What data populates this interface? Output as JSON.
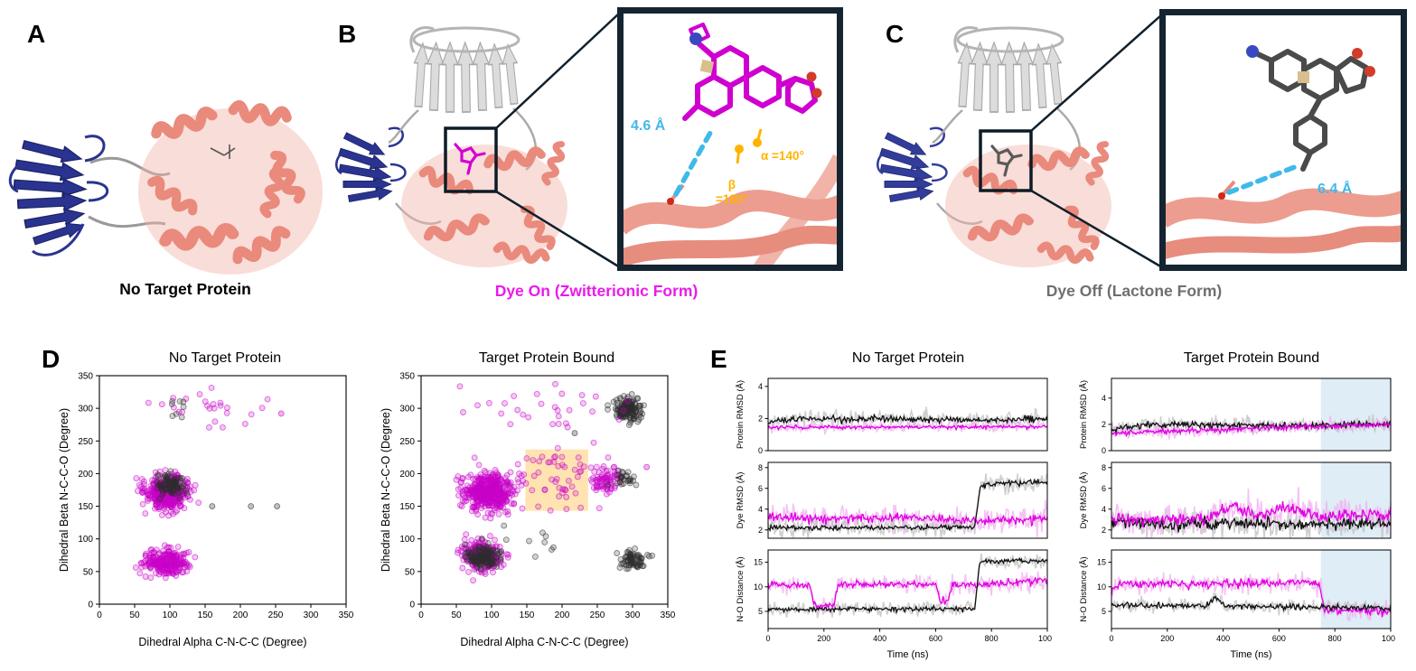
{
  "panels": {
    "a": {
      "label": "A",
      "caption": "No Target Protein"
    },
    "b": {
      "label": "B",
      "caption": "Dye On (Zwitterionic Form)",
      "inset": {
        "distance_label": "4.6 Å",
        "alpha_label": "α =140°",
        "beta_label": "β\n=180°"
      }
    },
    "c": {
      "label": "C",
      "caption": "Dye Off (Lactone Form)",
      "inset": {
        "distance_label": "6.4 Å"
      }
    },
    "d": {
      "label": "D"
    },
    "e": {
      "label": "E"
    }
  },
  "colors": {
    "dye_on_magenta": "#ea1bea",
    "dye_off_gray": "#6f6f6f",
    "distance_cyan": "#41b9e9",
    "angle_orange": "#ffb300",
    "scatter_magenta": "#c800c8",
    "scatter_black": "#2e2e2e",
    "trace_magenta": "#e100e1",
    "trace_black": "#111111",
    "highlight_orange": "#ffd27f",
    "highlight_blue": "#d9eaf5",
    "protein_salmon": "#ee9486",
    "protein_navy": "#2a3490",
    "protein_gray": "#c9c9c9"
  },
  "chart_data": [
    {
      "id": "scatter_no_target",
      "type": "scatter",
      "title": "No Target Protein",
      "xlabel": "Dihedral Alpha C-N-C-C (Degree)",
      "ylabel": "Dihedral Beta N-C-C-O (Degree)",
      "xlim": [
        0,
        350
      ],
      "ylim": [
        0,
        350
      ],
      "xticks": [
        0,
        50,
        100,
        150,
        200,
        250,
        300,
        350
      ],
      "yticks": [
        0,
        50,
        100,
        150,
        200,
        250,
        300,
        350
      ],
      "clusters": [
        {
          "color": "magenta",
          "cx": 95,
          "cy": 170,
          "sx": 16,
          "sy": 13,
          "n": 420
        },
        {
          "color": "black",
          "cx": 103,
          "cy": 183,
          "sx": 10,
          "sy": 8,
          "n": 90
        },
        {
          "color": "magenta",
          "cx": 95,
          "cy": 65,
          "sx": 15,
          "sy": 10,
          "n": 230
        },
        {
          "color": "magenta",
          "cx": 150,
          "cy": 300,
          "sx": 55,
          "sy": 17,
          "n": 26
        },
        {
          "color": "black",
          "cx": 112,
          "cy": 297,
          "sx": 10,
          "sy": 9,
          "n": 8
        }
      ],
      "points": [
        {
          "color": "black",
          "x": 215,
          "y": 150
        },
        {
          "color": "black",
          "x": 252,
          "y": 150
        },
        {
          "color": "black",
          "x": 160,
          "y": 150
        },
        {
          "color": "magenta",
          "x": 258,
          "y": 292
        }
      ]
    },
    {
      "id": "scatter_bound",
      "type": "scatter",
      "title": "Target Protein Bound",
      "xlabel": "Dihedral Alpha C-N-C-C (Degree)",
      "ylabel": "Dihedral Beta N-C-C-O (Degree)",
      "xlim": [
        0,
        350
      ],
      "ylim": [
        0,
        350
      ],
      "xticks": [
        0,
        50,
        100,
        150,
        200,
        250,
        300,
        350
      ],
      "yticks": [
        0,
        50,
        100,
        150,
        200,
        250,
        300,
        350
      ],
      "highlight_rect": {
        "x0": 148,
        "x1": 237,
        "y0": 143,
        "y1": 237,
        "color": "#ffd27f",
        "opacity": 0.6
      },
      "clusters": [
        {
          "color": "magenta",
          "cx": 95,
          "cy": 172,
          "sx": 17,
          "sy": 14,
          "n": 420
        },
        {
          "color": "magenta",
          "cx": 88,
          "cy": 75,
          "sx": 14,
          "sy": 11,
          "n": 240
        },
        {
          "color": "black",
          "cx": 88,
          "cy": 72,
          "sx": 11,
          "sy": 9,
          "n": 130
        },
        {
          "color": "black",
          "cx": 293,
          "cy": 299,
          "sx": 9,
          "sy": 8,
          "n": 150
        },
        {
          "color": "black",
          "cx": 300,
          "cy": 68,
          "sx": 10,
          "sy": 8,
          "n": 70
        },
        {
          "color": "magenta",
          "cx": 263,
          "cy": 190,
          "sx": 12,
          "sy": 10,
          "n": 70
        },
        {
          "color": "black",
          "cx": 290,
          "cy": 193,
          "sx": 8,
          "sy": 7,
          "n": 25
        },
        {
          "color": "magenta",
          "cx": 190,
          "cy": 195,
          "sx": 30,
          "sy": 25,
          "n": 55
        },
        {
          "color": "magenta",
          "cx": 160,
          "cy": 300,
          "sx": 60,
          "sy": 17,
          "n": 30
        },
        {
          "color": "black",
          "cx": 150,
          "cy": 95,
          "sx": 25,
          "sy": 12,
          "n": 10
        }
      ],
      "points": [
        {
          "color": "black",
          "x": 218,
          "y": 262
        },
        {
          "color": "magenta",
          "x": 320,
          "y": 210
        }
      ]
    },
    {
      "id": "protein_rmsd_no_target",
      "type": "line",
      "title": "No Target Protein",
      "ylabel": "Protein RMSD (Å)",
      "xlim": [
        0,
        1000
      ],
      "ylim": [
        0,
        4.5
      ],
      "yticks": [
        0,
        2,
        4
      ],
      "xticks": [],
      "series": [
        {
          "name": "dye-off",
          "color": "#111111",
          "band": "#bfbfbf",
          "noise": 0.1,
          "band_noise": 0.26,
          "points": [
            [
              0,
              1.75
            ],
            [
              80,
              1.95
            ],
            [
              400,
              2.0
            ],
            [
              700,
              1.9
            ],
            [
              1000,
              1.95
            ]
          ]
        },
        {
          "name": "dye-on",
          "color": "#e100e1",
          "band": "#f2aef2",
          "noise": 0.06,
          "band_noise": 0.16,
          "points": [
            [
              0,
              1.45
            ],
            [
              1000,
              1.5
            ]
          ]
        }
      ]
    },
    {
      "id": "dye_rmsd_no_target",
      "type": "line",
      "ylabel": "Dye RMSD (Å)",
      "xlim": [
        0,
        1000
      ],
      "ylim": [
        1.2,
        8.5
      ],
      "yticks": [
        2,
        4,
        6,
        8
      ],
      "xticks": [],
      "series": [
        {
          "name": "dye-on",
          "color": "#e100e1",
          "band": "#f2aef2",
          "noise": 0.22,
          "band_noise": 0.6,
          "points": [
            [
              0,
              3.3
            ],
            [
              200,
              3.1
            ],
            [
              500,
              3.2
            ],
            [
              760,
              2.9
            ],
            [
              1000,
              3.1
            ]
          ]
        },
        {
          "name": "dye-off",
          "color": "#111111",
          "band": "#bfbfbf",
          "noise": 0.12,
          "band_noise": 0.4,
          "points": [
            [
              0,
              2.2
            ],
            [
              740,
              2.25
            ],
            [
              760,
              6.2
            ],
            [
              820,
              6.5
            ],
            [
              1000,
              6.6
            ]
          ]
        }
      ]
    },
    {
      "id": "no_dist_no_target",
      "type": "line",
      "ylabel": "N-O Distance (Å)",
      "xlabel": "Time (ns)",
      "xlim": [
        0,
        1000
      ],
      "ylim": [
        1.5,
        17.5
      ],
      "yticks": [
        5,
        10,
        15
      ],
      "xticks": [
        0,
        200,
        400,
        600,
        800,
        1000
      ],
      "series": [
        {
          "name": "dye-on",
          "color": "#e100e1",
          "band": "#f2aef2",
          "noise": 0.35,
          "band_noise": 0.9,
          "points": [
            [
              0,
              10.6
            ],
            [
              150,
              10.4
            ],
            [
              165,
              6.1
            ],
            [
              235,
              6.2
            ],
            [
              250,
              10.5
            ],
            [
              600,
              10.6
            ],
            [
              615,
              7.2
            ],
            [
              645,
              7.0
            ],
            [
              660,
              10.5
            ],
            [
              735,
              10.4
            ],
            [
              1000,
              11.2
            ]
          ]
        },
        {
          "name": "dye-off",
          "color": "#111111",
          "band": "#bfbfbf",
          "noise": 0.25,
          "band_noise": 0.7,
          "points": [
            [
              0,
              5.4
            ],
            [
              740,
              5.5
            ],
            [
              758,
              15.1
            ],
            [
              1000,
              15.3
            ]
          ]
        }
      ]
    },
    {
      "id": "protein_rmsd_bound",
      "type": "line",
      "title": "Target Protein Bound",
      "ylabel": "Protein RMSD (Å)",
      "xlim": [
        0,
        1000
      ],
      "ylim": [
        0,
        5.5
      ],
      "yticks": [
        0,
        2,
        4
      ],
      "xticks": [],
      "highlight": [
        750,
        1000
      ],
      "series": [
        {
          "name": "dye-off",
          "color": "#111111",
          "band": "#bfbfbf",
          "noise": 0.12,
          "band_noise": 0.3,
          "points": [
            [
              0,
              1.6
            ],
            [
              120,
              2.0
            ],
            [
              600,
              1.9
            ],
            [
              1000,
              2.0
            ]
          ]
        },
        {
          "name": "dye-on",
          "color": "#e100e1",
          "band": "#f2aef2",
          "noise": 0.1,
          "band_noise": 0.25,
          "points": [
            [
              0,
              1.3
            ],
            [
              400,
              1.6
            ],
            [
              800,
              1.9
            ],
            [
              1000,
              2.0
            ]
          ]
        }
      ]
    },
    {
      "id": "dye_rmsd_bound",
      "type": "line",
      "ylabel": "Dye RMSD (Å)",
      "xlim": [
        0,
        1000
      ],
      "ylim": [
        1.2,
        8.5
      ],
      "yticks": [
        2,
        4,
        6,
        8
      ],
      "xticks": [],
      "highlight": [
        750,
        1000
      ],
      "series": [
        {
          "name": "dye-off",
          "color": "#111111",
          "band": "#bfbfbf",
          "noise": 0.28,
          "band_noise": 0.7,
          "points": [
            [
              0,
              2.7
            ],
            [
              200,
              2.5
            ],
            [
              420,
              2.7
            ],
            [
              700,
              2.5
            ],
            [
              1000,
              2.6
            ]
          ]
        },
        {
          "name": "dye-on",
          "color": "#e100e1",
          "band": "#f2aef2",
          "noise": 0.3,
          "band_noise": 0.8,
          "points": [
            [
              0,
              2.9
            ],
            [
              340,
              3.1
            ],
            [
              430,
              4.3
            ],
            [
              520,
              3.5
            ],
            [
              640,
              4.1
            ],
            [
              760,
              3.3
            ],
            [
              900,
              3.6
            ],
            [
              1000,
              3.5
            ]
          ]
        }
      ]
    },
    {
      "id": "no_dist_bound",
      "type": "line",
      "ylabel": "N-O Distance (Å)",
      "xlabel": "Time (ns)",
      "xlim": [
        0,
        1000
      ],
      "ylim": [
        1.5,
        17.5
      ],
      "yticks": [
        5,
        10,
        15
      ],
      "xticks": [
        0,
        200,
        400,
        600,
        800,
        1000
      ],
      "highlight": [
        750,
        1000
      ],
      "series": [
        {
          "name": "dye-on",
          "color": "#e100e1",
          "band": "#f2aef2",
          "noise": 0.45,
          "band_noise": 1.0,
          "points": [
            [
              0,
              9.0
            ],
            [
              40,
              10.6
            ],
            [
              700,
              10.8
            ],
            [
              745,
              10.4
            ],
            [
              762,
              5.3
            ],
            [
              1000,
              5.0
            ]
          ]
        },
        {
          "name": "dye-off",
          "color": "#111111",
          "band": "#bfbfbf",
          "noise": 0.3,
          "band_noise": 0.7,
          "points": [
            [
              0,
              6.3
            ],
            [
              340,
              6.1
            ],
            [
              375,
              7.9
            ],
            [
              405,
              6.0
            ],
            [
              740,
              5.9
            ],
            [
              1000,
              5.6
            ]
          ]
        }
      ]
    }
  ]
}
